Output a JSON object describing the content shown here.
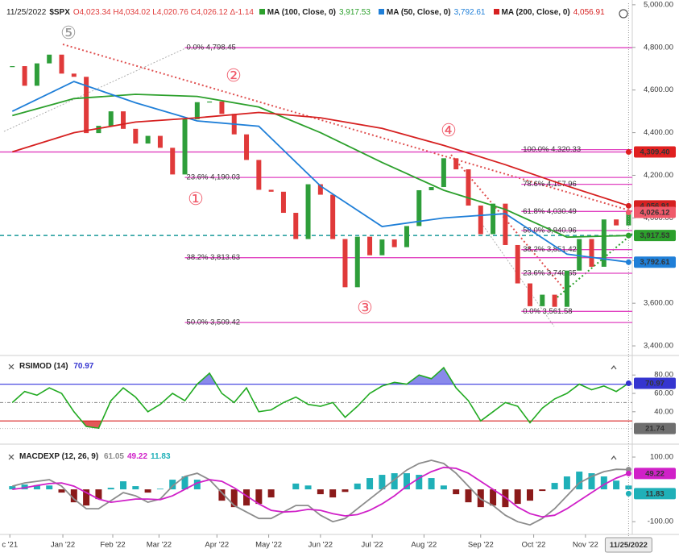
{
  "chart_data": [
    {
      "type": "price",
      "date": "11/25/2022",
      "symbol": "$SPX",
      "ohlc": "O4,023.34 H4,034.02 L4,020.76 C4,026.12 Δ-1.14",
      "price": {
        "up_color": "#2e9e3a",
        "down_color": "#e03a3a",
        "values": [
          4712,
          4620,
          4725,
          4766,
          4677,
          4662,
          4398,
          4432,
          4500,
          4418,
          4349,
          4385,
          4329,
          4204,
          4463,
          4543,
          4546,
          4488,
          4392,
          4272,
          4132,
          4123,
          4024,
          3901,
          4158,
          4109,
          3901,
          3675,
          3912,
          3825,
          3899,
          3863,
          3962,
          4130,
          4145,
          4280,
          4228,
          4058,
          3924,
          4067,
          3873,
          3693,
          3586,
          3640,
          3583,
          3753,
          3901,
          3771,
          3993,
          3965,
          4026.12
        ],
        "value_labels": [
          null,
          null,
          null,
          null,
          null,
          null,
          null,
          null,
          null,
          null,
          null,
          null,
          null,
          null,
          null,
          null,
          null,
          null,
          null,
          null,
          null,
          null,
          null,
          null,
          null,
          null,
          null,
          null,
          null,
          null,
          null,
          null,
          null,
          null,
          null,
          null,
          null,
          null,
          null,
          null,
          null,
          null,
          null,
          null,
          null,
          null,
          null,
          null,
          null,
          null,
          "4,026.12"
        ],
        "label_color": "#f05a6a"
      },
      "series": [
        {
          "name": "MA (100, Close, 0)",
          "color": "#2ca02c",
          "x": [
            0,
            5,
            10,
            15,
            20,
            25,
            30,
            35,
            40,
            45,
            50
          ],
          "values": [
            4480,
            4560,
            4580,
            4570,
            4520,
            4400,
            4260,
            4130,
            4040,
            3910,
            3917.53
          ],
          "value_labels": [
            null,
            null,
            null,
            null,
            null,
            null,
            null,
            null,
            null,
            null,
            "3,917.53"
          ]
        },
        {
          "name": "MA (50, Close, 0)",
          "color": "#1f7fd8",
          "x": [
            0,
            5,
            10,
            15,
            20,
            25,
            30,
            35,
            40,
            45,
            50
          ],
          "values": [
            4500,
            4640,
            4540,
            4455,
            4430,
            4150,
            3960,
            4000,
            4020,
            3830,
            3792.61
          ],
          "value_labels": [
            null,
            null,
            null,
            null,
            null,
            null,
            null,
            null,
            null,
            null,
            "3,792.61"
          ]
        },
        {
          "name": "MA (200, Close, 0)",
          "color": "#d62020",
          "x": [
            0,
            5,
            10,
            15,
            20,
            25,
            30,
            35,
            40,
            45,
            50
          ],
          "values": [
            4310,
            4400,
            4450,
            4470,
            4495,
            4470,
            4420,
            4340,
            4250,
            4150,
            4056.91
          ],
          "value_labels": [
            null,
            null,
            null,
            null,
            null,
            null,
            null,
            null,
            null,
            null,
            "4,056.91"
          ]
        }
      ],
      "level_color": "#1a9a9a",
      "fib_color": "#e040c0",
      "horizontal_lines": [
        {
          "value": 4309.4,
          "label": "4,309.40",
          "color": "#e02020"
        }
      ],
      "fibs": [
        {
          "start": 14,
          "levels": [
            {
              "value": 4798.45,
              "label": "0.0% 4,798.45"
            },
            {
              "value": 4190.03,
              "label": "23.6% 4,190.03"
            },
            {
              "value": 3813.63,
              "label": "38.2% 3,813.63"
            },
            {
              "value": 3509.42,
              "label": "50.0% 3,509.42"
            }
          ]
        },
        {
          "start": 41.3,
          "levels": [
            {
              "value": 4320.33,
              "label": "100.0% 4,320.33"
            },
            {
              "value": 4157.96,
              "label": "78.6% 4,157.96"
            },
            {
              "value": 4030.49,
              "label": "61.8% 4,030.49"
            },
            {
              "value": 3940.96,
              "label": "50.0% 3,940.96"
            },
            {
              "value": 3851.42,
              "label": "38.2% 3,851.42"
            },
            {
              "value": 3740.65,
              "label": "23.6% 3,740.65"
            },
            {
              "value": 3561.58,
              "label": "0.0% 3,561.58"
            }
          ]
        }
      ],
      "wave_labels": [
        "①",
        "②",
        "③",
        "④",
        "⑤"
      ],
      "ylim": [
        3370,
        4992
      ],
      "yticks": [
        {
          "value": 3400,
          "label": "3,400.00"
        },
        {
          "value": 3600,
          "label": "3,600.00"
        },
        {
          "value": 3800,
          "label": "3,800.00"
        },
        {
          "value": 4000,
          "label": "4,000.00"
        },
        {
          "value": 4200,
          "label": "4,200.00"
        },
        {
          "value": 4400,
          "label": "4,400.00"
        },
        {
          "value": 4600,
          "label": "4,600.00"
        },
        {
          "value": 4800,
          "label": "4,800.00"
        },
        {
          "value": 5000,
          "label": "5,000.00"
        }
      ]
    },
    {
      "type": "oscillator",
      "title": "RSIMOD (14)",
      "color": "#22aa22",
      "values": [
        50,
        62,
        58,
        66,
        60,
        40,
        24,
        22,
        52,
        66,
        56,
        40,
        48,
        60,
        52,
        70,
        82,
        60,
        50,
        66,
        40,
        42,
        50,
        56,
        48,
        46,
        50,
        34,
        46,
        60,
        68,
        72,
        70,
        80,
        76,
        88,
        66,
        52,
        30,
        40,
        50,
        46,
        28,
        44,
        54,
        60,
        70,
        64,
        68,
        62,
        70.97
      ],
      "value_labels": [
        null,
        null,
        null,
        null,
        null,
        null,
        null,
        null,
        null,
        null,
        null,
        null,
        null,
        null,
        null,
        null,
        null,
        null,
        null,
        null,
        null,
        null,
        null,
        null,
        null,
        null,
        null,
        null,
        null,
        null,
        null,
        null,
        null,
        null,
        null,
        null,
        null,
        null,
        null,
        null,
        null,
        null,
        null,
        null,
        null,
        null,
        null,
        null,
        null,
        null,
        "70.97"
      ],
      "label_color": "#3535d0",
      "overbought": 70,
      "oversold": 30,
      "midline": 50,
      "overbought_color": "#4a4ae0",
      "oversold_color": "#d82020",
      "markers": [
        {
          "value": 21.74,
          "label": "21.74",
          "color": "#6f6f6f"
        }
      ],
      "ylim": [
        10,
        96
      ],
      "yticks": [
        {
          "value": 40,
          "label": "40.00"
        },
        {
          "value": 60,
          "label": "60.00"
        },
        {
          "value": 80,
          "label": "80.00"
        }
      ]
    },
    {
      "type": "macd",
      "title": "MACDEXP (12, 26, 9)",
      "series": [
        {
          "color": "#8c8c8c",
          "values": [
            10,
            20,
            25,
            30,
            10,
            -30,
            -60,
            -60,
            -35,
            -10,
            -20,
            -40,
            -30,
            10,
            40,
            50,
            30,
            -10,
            -50,
            -70,
            -90,
            -90,
            -70,
            -50,
            -50,
            -80,
            -100,
            -90,
            -60,
            -30,
            0,
            30,
            60,
            80,
            90,
            80,
            50,
            10,
            -30,
            -50,
            -80,
            -100,
            -110,
            -90,
            -60,
            -20,
            20,
            40,
            55,
            62,
            61.05
          ],
          "value_labels": [
            null,
            null,
            null,
            null,
            null,
            null,
            null,
            null,
            null,
            null,
            null,
            null,
            null,
            null,
            null,
            null,
            null,
            null,
            null,
            null,
            null,
            null,
            null,
            null,
            null,
            null,
            null,
            null,
            null,
            null,
            null,
            null,
            null,
            null,
            null,
            null,
            null,
            null,
            null,
            null,
            null,
            null,
            null,
            null,
            null,
            null,
            null,
            null,
            null,
            null,
            "61.05"
          ]
        },
        {
          "color": "#d020c8",
          "values": [
            0,
            5,
            12,
            18,
            20,
            10,
            -10,
            -30,
            -40,
            -35,
            -30,
            -30,
            -32,
            -20,
            0,
            20,
            30,
            25,
            5,
            -20,
            -45,
            -65,
            -70,
            -68,
            -62,
            -65,
            -75,
            -82,
            -78,
            -65,
            -45,
            -20,
            10,
            35,
            55,
            68,
            65,
            50,
            25,
            0,
            -25,
            -55,
            -75,
            -85,
            -80,
            -60,
            -35,
            -10,
            15,
            35,
            49.22
          ],
          "value_labels": [
            null,
            null,
            null,
            null,
            null,
            null,
            null,
            null,
            null,
            null,
            null,
            null,
            null,
            null,
            null,
            null,
            null,
            null,
            null,
            null,
            null,
            null,
            null,
            null,
            null,
            null,
            null,
            null,
            null,
            null,
            null,
            null,
            null,
            null,
            null,
            null,
            null,
            null,
            null,
            null,
            null,
            null,
            null,
            null,
            null,
            null,
            null,
            null,
            null,
            null,
            "49.22"
          ]
        }
      ],
      "histogram": {
        "up_color": "#1fb0b8",
        "down_color": "#8b1a1a",
        "values": [
          10,
          15,
          13,
          12,
          -10,
          -40,
          -50,
          -30,
          5,
          25,
          10,
          -10,
          2,
          30,
          40,
          30,
          0,
          -35,
          -55,
          -50,
          -45,
          -25,
          0,
          18,
          12,
          -15,
          -25,
          -8,
          18,
          35,
          45,
          50,
          50,
          45,
          35,
          12,
          -15,
          -40,
          -55,
          -50,
          -55,
          -45,
          -35,
          -5,
          20,
          40,
          55,
          50,
          40,
          27,
          11.83
        ],
        "value_labels": [
          null,
          null,
          null,
          null,
          null,
          null,
          null,
          null,
          null,
          null,
          null,
          null,
          null,
          null,
          null,
          null,
          null,
          null,
          null,
          null,
          null,
          null,
          null,
          null,
          null,
          null,
          null,
          null,
          null,
          null,
          null,
          null,
          null,
          null,
          null,
          null,
          null,
          null,
          null,
          null,
          null,
          null,
          null,
          null,
          null,
          null,
          null,
          null,
          null,
          null,
          "11.83"
        ]
      },
      "ylim": [
        -132,
        125
      ],
      "yticks": [
        {
          "value": -100,
          "label": "-100.00"
        },
        {
          "value": 100,
          "label": "100.00"
        }
      ],
      "xlim": [
        -1,
        50.3
      ],
      "xticks": [
        {
          "value": -0.2,
          "label": "c '21"
        },
        {
          "value": 4.1,
          "label": "Jan '22"
        },
        {
          "value": 8.15,
          "label": "Feb '22"
        },
        {
          "value": 11.9,
          "label": "Mar '22"
        },
        {
          "value": 16.6,
          "label": "Apr '22"
        },
        {
          "value": 20.8,
          "label": "May '22"
        },
        {
          "value": 25.0,
          "label": "Jun '22"
        },
        {
          "value": 29.2,
          "label": "Jul '22"
        },
        {
          "value": 33.4,
          "label": "Aug '22"
        },
        {
          "value": 38.0,
          "label": "Sep '22"
        },
        {
          "value": 42.3,
          "label": "Oct '22"
        },
        {
          "value": 46.5,
          "label": "Nov '22"
        }
      ]
    }
  ]
}
